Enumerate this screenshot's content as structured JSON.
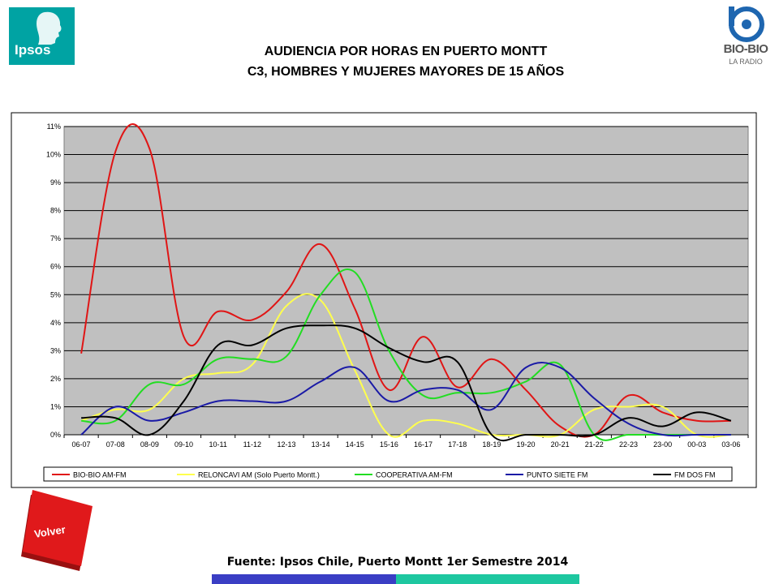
{
  "header": {
    "title_line1": "AUDIENCIA POR HORAS EN PUERTO MONTT",
    "title_line2": "C3, HOMBRES Y MUJERES MAYORES DE 15 AÑOS",
    "logo_left_text": "Ipsos",
    "logo_right_brand": "BIO-BIO",
    "logo_right_sub": "LA RADIO"
  },
  "footer": {
    "source": "Fuente: Ipsos Chile, Puerto Montt 1er Semestre 2014",
    "back_button_label": "Volver"
  },
  "colors": {
    "ipsos_teal": "#00a3a3",
    "biobio_blue": "#1e66b0",
    "volver_red": "#e0191b",
    "plot_background": "#c0c0c0",
    "bar_blue": "#3a3ec4",
    "bar_teal": "#1ec7a0"
  },
  "chart_data": {
    "type": "line",
    "title": "",
    "xlabel": "",
    "ylabel": "",
    "categories": [
      "06-07",
      "07-08",
      "08-09",
      "09-10",
      "10-11",
      "11-12",
      "12-13",
      "13-14",
      "14-15",
      "15-16",
      "16-17",
      "17-18",
      "18-19",
      "19-20",
      "20-21",
      "21-22",
      "22-23",
      "23-00",
      "00-03",
      "03-06"
    ],
    "ylim": [
      0,
      11
    ],
    "y_ticks": [
      "0%",
      "1%",
      "2%",
      "3%",
      "4%",
      "5%",
      "6%",
      "7%",
      "8%",
      "9%",
      "10%",
      "11%"
    ],
    "grid": true,
    "legend_position": "bottom",
    "series": [
      {
        "name": "BIO-BIO AM-FM",
        "color": "#e01515",
        "values": [
          2.9,
          10.1,
          10.2,
          3.5,
          4.4,
          4.1,
          5.1,
          6.8,
          4.5,
          1.6,
          3.5,
          1.7,
          2.7,
          1.6,
          0.3,
          0.0,
          1.4,
          0.8,
          0.5,
          0.5
        ]
      },
      {
        "name": "RELONCAVI AM (Solo Puerto Montt.)",
        "color": "#ffff4d",
        "values": [
          0.5,
          0.9,
          0.9,
          2.0,
          2.2,
          2.5,
          4.6,
          4.8,
          2.3,
          0.0,
          0.5,
          0.4,
          0.0,
          0.0,
          0.0,
          0.9,
          1.0,
          1.0,
          0.0,
          0.0
        ]
      },
      {
        "name": "COOPERATIVA AM-FM",
        "color": "#22dd22",
        "values": [
          0.5,
          0.5,
          1.8,
          1.8,
          2.7,
          2.7,
          2.8,
          5.0,
          5.8,
          3.0,
          1.4,
          1.5,
          1.5,
          1.9,
          2.5,
          0.0,
          0.0,
          0.0,
          0.0,
          0.0
        ]
      },
      {
        "name": "PUNTO SIETE FM",
        "color": "#1a1aa6",
        "values": [
          0.0,
          1.0,
          0.5,
          0.8,
          1.2,
          1.2,
          1.2,
          1.9,
          2.4,
          1.2,
          1.6,
          1.6,
          0.9,
          2.4,
          2.4,
          1.3,
          0.4,
          0.0,
          0.0,
          0.0
        ]
      },
      {
        "name": "FM DOS FM",
        "color": "#000000",
        "values": [
          0.6,
          0.6,
          0.0,
          1.2,
          3.2,
          3.2,
          3.8,
          3.9,
          3.8,
          3.1,
          2.6,
          2.6,
          0.0,
          0.0,
          0.0,
          0.0,
          0.6,
          0.3,
          0.8,
          0.5
        ]
      }
    ]
  }
}
